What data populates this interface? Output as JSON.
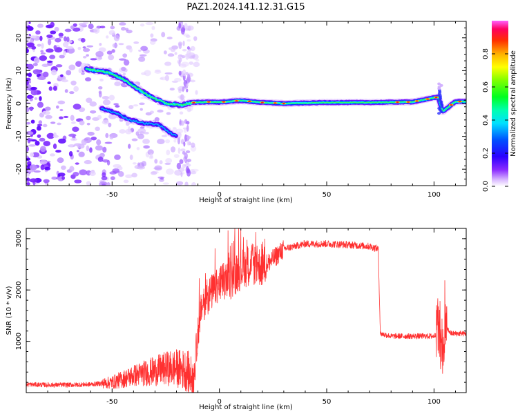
{
  "title": "PAZ1.2024.141.12.31.G15",
  "chart_data": [
    {
      "type": "heatmap",
      "xlabel": "Height of straight line (km)",
      "ylabel": "Frequency (Hz)",
      "xlim": [
        -90,
        115
      ],
      "ylim": [
        -25,
        25
      ],
      "xticks": [
        -50,
        0,
        50,
        100
      ],
      "yticks": [
        -20,
        -10,
        0,
        10,
        20
      ],
      "colorbar": {
        "label": "Normalized spectral amplitude",
        "range": [
          0.0,
          1.0
        ],
        "ticks": [
          "0.0",
          "0.2",
          "0.4",
          "0.6",
          "0.8"
        ],
        "colormap": "gist_ncar-like: white, purple, blue, cyan, green, yellow, orange, red, magenta"
      },
      "ridges": [
        {
          "x": [
            -62,
            -52,
            -45,
            -38,
            -32,
            -25,
            -18,
            -12,
            -5,
            0,
            10,
            20,
            30,
            50,
            70,
            90,
            102,
            104,
            110,
            115
          ],
          "y": [
            10.5,
            9.5,
            7.5,
            4.5,
            2,
            0,
            -0.5,
            0.3,
            0.5,
            0.4,
            0.9,
            0.3,
            0.0,
            0.3,
            0.3,
            0.5,
            2.0,
            -2.5,
            0.6,
            0.6
          ]
        },
        {
          "x": [
            -55,
            -48,
            -42,
            -35,
            -28,
            -24,
            -20
          ],
          "y": [
            -1.5,
            -3,
            -5,
            -6,
            -6.5,
            -8.5,
            -10
          ]
        }
      ]
    },
    {
      "type": "line",
      "xlabel": "Height of straight line (km)",
      "ylabel": "SNR (10 * v/v)",
      "xlim": [
        -90,
        115
      ],
      "ylim": [
        0,
        3200
      ],
      "xticks": [
        -50,
        0,
        50,
        100
      ],
      "yticks": [
        1000,
        2000,
        3000
      ],
      "color": "#ff3030",
      "series": [
        {
          "x": [
            -90,
            -80,
            -70,
            -60,
            -50,
            -45,
            -40,
            -35,
            -30,
            -25,
            -20,
            -15,
            -12,
            -10,
            -8,
            -5,
            0,
            5,
            10,
            15,
            20,
            25,
            30,
            40,
            50,
            60,
            70,
            74,
            75,
            80,
            90,
            100,
            102,
            104,
            105,
            108,
            115
          ],
          "y": [
            160,
            150,
            150,
            160,
            200,
            260,
            330,
            380,
            420,
            470,
            480,
            430,
            220,
            1200,
            1700,
            1900,
            2100,
            2200,
            2400,
            2500,
            2450,
            2600,
            2800,
            2900,
            2900,
            2880,
            2850,
            2800,
            1150,
            1100,
            1100,
            1100,
            1200,
            700,
            1300,
            1150,
            1150
          ]
        }
      ]
    }
  ]
}
